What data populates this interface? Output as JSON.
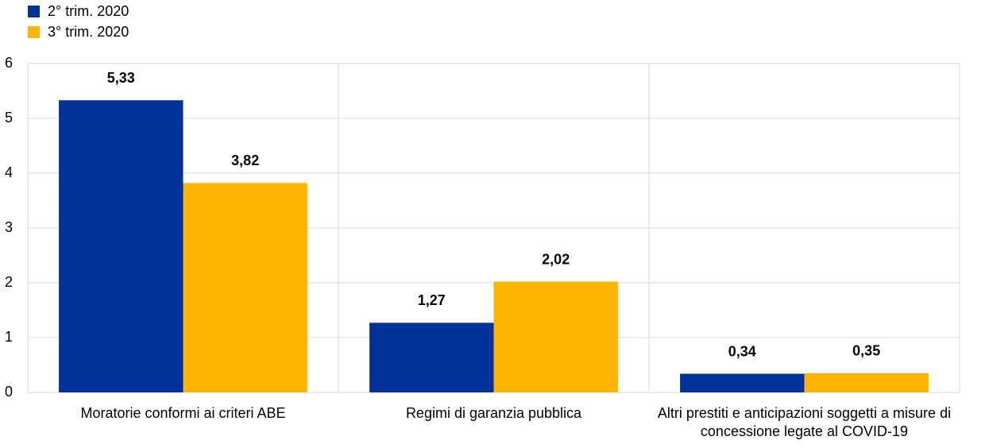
{
  "chart_data": {
    "type": "bar",
    "categories": [
      "Moratorie conformi ai criteri ABE",
      "Regimi di garanzia pubblica",
      "Altri prestiti e anticipazioni soggetti a misure di concessione legate al COVID-19"
    ],
    "series": [
      {
        "name": "2° trim. 2020",
        "color": "#003299",
        "values": [
          5.33,
          1.27,
          0.34
        ],
        "value_labels": [
          "5,33",
          "1,27",
          "0,34"
        ]
      },
      {
        "name": "3° trim. 2020",
        "color": "#ffb400",
        "values": [
          3.82,
          2.02,
          0.35
        ],
        "value_labels": [
          "3,82",
          "2,02",
          "0,35"
        ]
      }
    ],
    "ylim": [
      0,
      6
    ],
    "yticks": [
      0,
      1,
      2,
      3,
      4,
      5,
      6
    ],
    "grid": true,
    "legend": "top-left"
  }
}
